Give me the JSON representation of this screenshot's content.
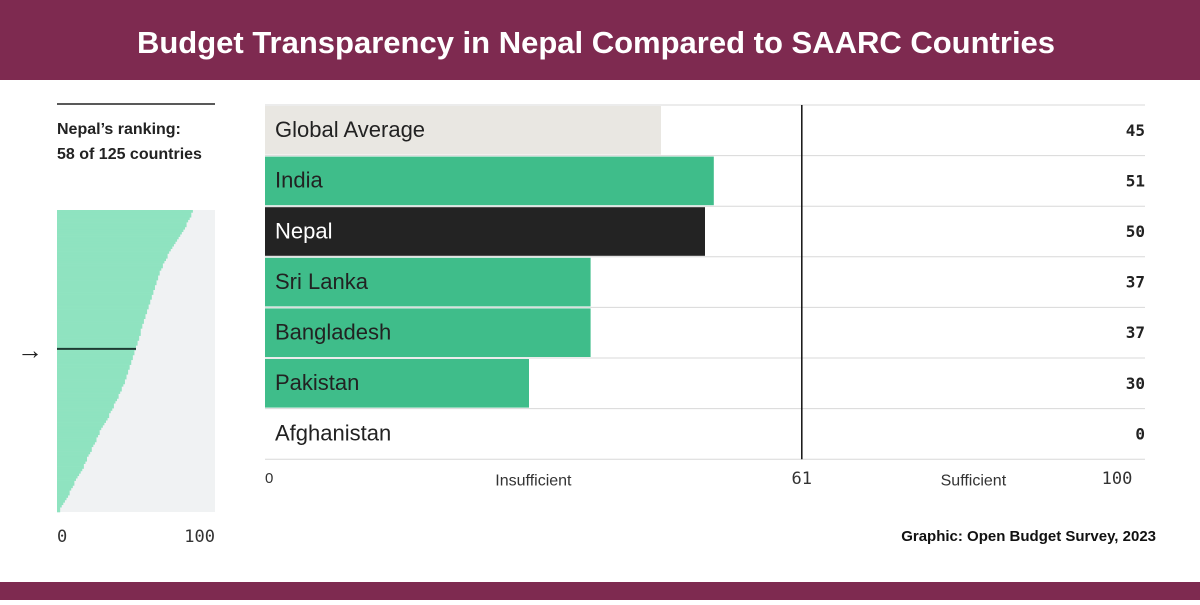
{
  "header": {
    "title": "Budget Transparency in Nepal Compared to SAARC Countries"
  },
  "source": "Graphic: Open Budget Survey, 2023",
  "chart_data": [
    {
      "type": "hbar",
      "categories": [
        "Global Average",
        "India",
        "Nepal",
        "Sri Lanka",
        "Bangladesh",
        "Pakistan",
        "Afghanistan"
      ],
      "values": [
        45,
        51,
        50,
        37,
        37,
        30,
        0
      ],
      "colors": [
        "#e9e7e2",
        "#3fbd8a",
        "#232323",
        "#3fbd8a",
        "#3fbd8a",
        "#3fbd8a",
        "#3fbd8a"
      ],
      "xlim": [
        0,
        100
      ],
      "xticks": [
        0,
        61,
        100
      ],
      "threshold": 61,
      "zone_labels": [
        "Insufficient",
        "Sufficient"
      ]
    },
    {
      "type": "ranking",
      "title": "Nepal’s ranking:",
      "subtitle": "58 of 125 countries",
      "highlight": 58,
      "color": "#8fe3c0",
      "xlim": [
        0,
        100
      ],
      "xticks": [
        0,
        100
      ],
      "values": [
        86,
        85,
        85,
        84,
        83,
        82,
        82,
        81,
        80,
        79,
        78,
        77,
        76,
        75,
        74,
        73,
        72,
        71,
        70,
        70,
        69,
        68,
        67,
        67,
        66,
        65,
        65,
        64,
        64,
        63,
        63,
        62,
        62,
        61,
        61,
        60,
        60,
        59,
        59,
        58,
        58,
        57,
        57,
        56,
        56,
        55,
        55,
        54,
        54,
        53,
        53,
        53,
        52,
        52,
        51,
        51,
        50,
        50,
        49,
        49,
        48,
        48,
        47,
        47,
        46,
        46,
        45,
        45,
        44,
        44,
        43,
        43,
        42,
        41,
        41,
        40,
        39,
        39,
        38,
        37,
        36,
        36,
        35,
        34,
        33,
        33,
        32,
        31,
        30,
        29,
        28,
        27,
        27,
        26,
        25,
        25,
        24,
        23,
        22,
        22,
        21,
        20,
        19,
        19,
        18,
        17,
        17,
        16,
        15,
        14,
        13,
        12,
        11,
        11,
        10,
        9,
        8,
        8,
        7,
        6,
        5,
        4,
        3,
        2,
        2
      ]
    }
  ]
}
